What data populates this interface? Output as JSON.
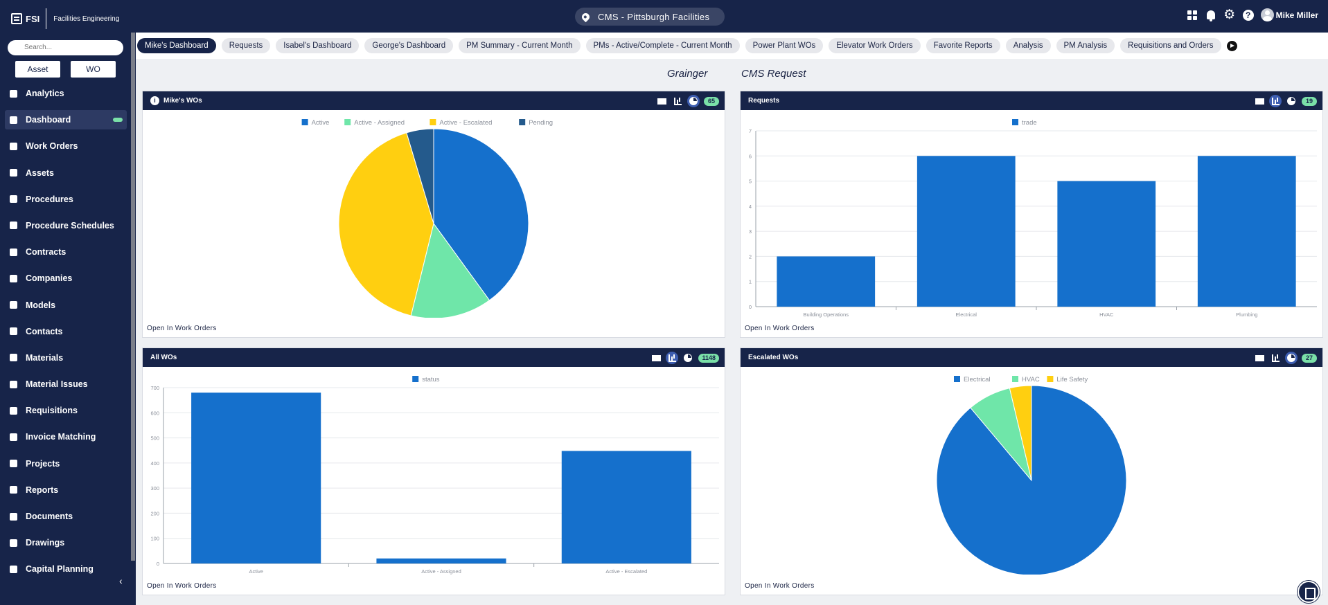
{
  "app": {
    "brand_short": "FSI",
    "brand_name": "Facilities Engineering",
    "site": "CMS - Pittsburgh Facilities",
    "user_name": "Mike Miller"
  },
  "sidebar": {
    "search_placeholder": "Search...",
    "asset_label": "Asset",
    "wo_label": "WO",
    "items": [
      {
        "label": "Analytics"
      },
      {
        "label": "Dashboard"
      },
      {
        "label": "Work Orders"
      },
      {
        "label": "Assets"
      },
      {
        "label": "Procedures"
      },
      {
        "label": "Procedure Schedules"
      },
      {
        "label": "Contracts"
      },
      {
        "label": "Companies"
      },
      {
        "label": "Models"
      },
      {
        "label": "Contacts"
      },
      {
        "label": "Materials"
      },
      {
        "label": "Material Issues"
      },
      {
        "label": "Requisitions"
      },
      {
        "label": "Invoice Matching"
      },
      {
        "label": "Projects"
      },
      {
        "label": "Reports"
      },
      {
        "label": "Documents"
      },
      {
        "label": "Drawings"
      },
      {
        "label": "Capital Planning"
      }
    ],
    "active_index": 1,
    "collapse_glyph": "‹"
  },
  "tabs": [
    "Mike's Dashboard",
    "Requests",
    "Isabel's Dashboard",
    "George's Dashboard",
    "PM Summary - Current Month",
    "PMs - Active/Complete - Current Month",
    "Power Plant WOs",
    "Elevator Work Orders",
    "Favorite Reports",
    "Analysis",
    "PM Analysis",
    "Requisitions and Orders"
  ],
  "links": {
    "grainger": "Grainger",
    "cms_request": "CMS Request"
  },
  "cards": {
    "mikes_wos": {
      "title": "Mike's WOs",
      "count": "65",
      "footer": "Open In Work Orders"
    },
    "requests": {
      "title": "Requests",
      "count": "19",
      "footer": "Open In Work Orders"
    },
    "all_wos": {
      "title": "All WOs",
      "count": "1148",
      "footer": "Open In Work Orders"
    },
    "escalated_wos": {
      "title": "Escalated WOs",
      "count": "27",
      "footer": "Open In Work Orders"
    }
  },
  "colors": {
    "navy": "#172449",
    "blue": "#1570cc",
    "green": "#6fe6a9",
    "yellow": "#ffcf10",
    "dark_blue": "#245a8c",
    "badge": "#7ae0a8"
  },
  "chart_data": [
    {
      "type": "pie",
      "categories": [
        "Active",
        "Active - Assigned",
        "Active - Escalated",
        "Pending"
      ],
      "values": [
        26,
        9,
        27,
        3
      ],
      "colors": [
        "#1570cc",
        "#6fe6a9",
        "#ffcf10",
        "#245a8c"
      ],
      "legend": "top"
    },
    {
      "type": "bar",
      "categories": [
        "Building Operations",
        "Electrical",
        "HVAC",
        "Plumbing"
      ],
      "series": [
        {
          "name": "trade",
          "values": [
            2,
            6,
            5,
            6
          ]
        }
      ],
      "ylim": [
        0,
        7
      ],
      "yticks": [
        0,
        1,
        2,
        3,
        4,
        5,
        6,
        7
      ],
      "grid": true,
      "legend": "top"
    },
    {
      "type": "bar",
      "categories": [
        "Active",
        "Active - Assigned",
        "Active - Escalated"
      ],
      "series": [
        {
          "name": "status",
          "values": [
            680,
            20,
            448
          ]
        }
      ],
      "ylim": [
        0,
        700
      ],
      "yticks": [
        0,
        100,
        200,
        300,
        400,
        500,
        600,
        700
      ],
      "grid": true,
      "legend": "top"
    },
    {
      "type": "pie",
      "categories": [
        "Electrical",
        "HVAC",
        "Life Safety"
      ],
      "values": [
        24,
        2,
        1
      ],
      "colors": [
        "#1570cc",
        "#6fe6a9",
        "#ffcf10"
      ],
      "legend": "top"
    }
  ]
}
